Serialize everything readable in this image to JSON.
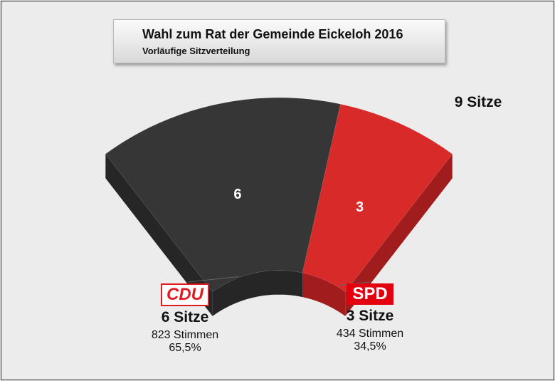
{
  "header": {
    "title": "Wahl zum Rat der Gemeinde Eickeloh 2016",
    "subtitle": "Vorläufige Sitzverteilung"
  },
  "total_label": "9 Sitze",
  "chart_data": {
    "type": "pie",
    "variant": "3d-half-donut",
    "title": "Wahl zum Rat der Gemeinde Eickeloh 2016",
    "subtitle": "Vorläufige Sitzverteilung",
    "total_seats": 9,
    "categories": [
      "CDU",
      "SPD"
    ],
    "values": [
      6,
      3
    ],
    "data_labels": [
      "6",
      "3"
    ],
    "colors": [
      "#363636",
      "#d92a2a"
    ],
    "side_colors": [
      "#262626",
      "#a11c1c"
    ],
    "parties": [
      {
        "name": "CDU",
        "seats_label": "6 Sitze",
        "votes_label": "823 Stimmen",
        "percent_label": "65,5%"
      },
      {
        "name": "SPD",
        "seats_label": "3 Sitze",
        "votes_label": "434 Stimmen",
        "percent_label": "34,5%"
      }
    ]
  }
}
